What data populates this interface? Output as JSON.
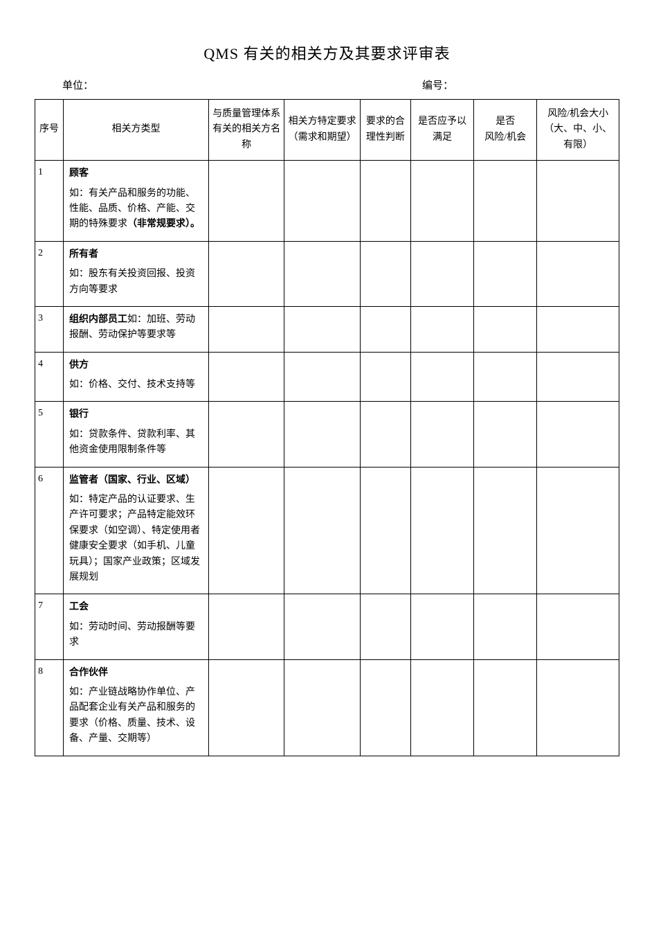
{
  "title": "QMS 有关的相关方及其要求评审表",
  "meta": {
    "unit_label": "单位：",
    "number_label": "编号："
  },
  "columns": [
    "序号",
    "相关方类型",
    "与质量管理体系有关的相关方名称",
    "相关方特定要求\n（需求和期望）",
    "要求的合理性判断",
    "是否应予以满足",
    "是否\n风险/机会",
    "风险/机会大小（大、中、小、有限）"
  ],
  "rows": [
    {
      "seq": "1",
      "heading": "顾客",
      "desc_prefix": "如：有关产品和服务的功能、性能、品质、价格、产能、交期的特殊要求",
      "desc_bold_suffix": "（非常规要求）。"
    },
    {
      "seq": "2",
      "heading": "所有者",
      "desc": "如：股东有关投资回报、投资方向等要求"
    },
    {
      "seq": "3",
      "inline_heading": "组织内部员工",
      "inline_rest": "如：加班、劳动报酬、劳动保护等要求等"
    },
    {
      "seq": "4",
      "heading": "供方",
      "desc": "如：价格、交付、技术支持等"
    },
    {
      "seq": "5",
      "heading": "银行",
      "desc": "如：贷款条件、贷款利率、其他资金使用限制条件等"
    },
    {
      "seq": "6",
      "heading": "监管者（国家、行业、区域）",
      "desc": "如：特定产品的认证要求、生产许可要求；产品特定能效环保要求（如空调）、特定使用者健康安全要求（如手机、儿童玩具）；国家产业政策；区域发展规划"
    },
    {
      "seq": "7",
      "heading": "工会",
      "desc": "如：劳动时间、劳动报酬等要求"
    },
    {
      "seq": "8",
      "heading": "合作伙伴",
      "desc": "如：产业链战略协作单位、产品配套企业有关产品和服务的要求（价格、质量、技术、设备、产量、交期等）"
    }
  ]
}
